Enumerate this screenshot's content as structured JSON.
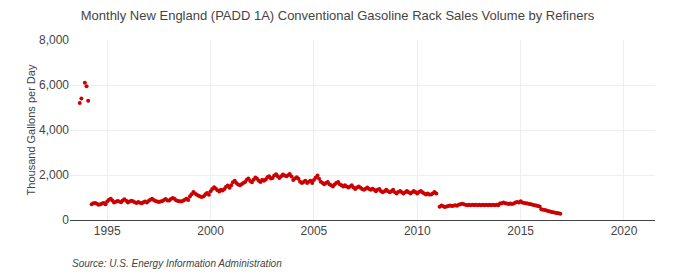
{
  "chart_data": {
    "type": "scatter",
    "title": "Monthly New England (PADD 1A) Conventional Gasoline Rack Sales Volume by Refiners",
    "y_label": "Thousand Gallons per Day",
    "annotations": [
      "Source: U.S. Energy Information Administration"
    ],
    "color": "#cc0000",
    "grid": true,
    "xlim": [
      1993.2,
      2021.5
    ],
    "xticks": [
      1995,
      2000,
      2005,
      2010,
      2015,
      2020
    ],
    "ylim": [
      0,
      8000
    ],
    "yticks": [
      0,
      {
        "value": 2000,
        "label": "2,000"
      },
      {
        "value": 4000,
        "label": "4,000"
      },
      {
        "value": 6000,
        "label": "6,000"
      },
      {
        "value": 8000,
        "label": "8,000"
      }
    ],
    "x": [
      1993.67,
      1993.75,
      1993.92,
      1994.0,
      1994.08,
      1994.25,
      1994.33,
      1994.42,
      1994.5,
      1994.58,
      1994.67,
      1994.75,
      1994.83,
      1994.92,
      1995.0,
      1995.08,
      1995.17,
      1995.25,
      1995.33,
      1995.42,
      1995.5,
      1995.58,
      1995.67,
      1995.75,
      1995.83,
      1995.92,
      1996.0,
      1996.08,
      1996.17,
      1996.25,
      1996.33,
      1996.42,
      1996.5,
      1996.58,
      1996.67,
      1996.75,
      1996.83,
      1996.92,
      1997.0,
      1997.08,
      1997.17,
      1997.25,
      1997.33,
      1997.42,
      1997.5,
      1997.58,
      1997.67,
      1997.75,
      1997.83,
      1997.92,
      1998.0,
      1998.08,
      1998.17,
      1998.25,
      1998.33,
      1998.42,
      1998.5,
      1998.58,
      1998.67,
      1998.75,
      1998.83,
      1998.92,
      1999.0,
      1999.08,
      1999.17,
      1999.25,
      1999.33,
      1999.42,
      1999.5,
      1999.58,
      1999.67,
      1999.75,
      1999.83,
      1999.92,
      2000.0,
      2000.08,
      2000.17,
      2000.25,
      2000.33,
      2000.42,
      2000.5,
      2000.58,
      2000.67,
      2000.75,
      2000.83,
      2000.92,
      2001.0,
      2001.08,
      2001.17,
      2001.25,
      2001.33,
      2001.42,
      2001.5,
      2001.58,
      2001.67,
      2001.75,
      2001.83,
      2001.92,
      2002.0,
      2002.08,
      2002.17,
      2002.25,
      2002.33,
      2002.42,
      2002.5,
      2002.58,
      2002.67,
      2002.75,
      2002.83,
      2002.92,
      2003.0,
      2003.08,
      2003.17,
      2003.25,
      2003.33,
      2003.42,
      2003.5,
      2003.58,
      2003.67,
      2003.75,
      2003.83,
      2003.92,
      2004.0,
      2004.08,
      2004.17,
      2004.25,
      2004.33,
      2004.42,
      2004.5,
      2004.58,
      2004.67,
      2004.75,
      2004.83,
      2004.92,
      2005.0,
      2005.08,
      2005.17,
      2005.25,
      2005.33,
      2005.42,
      2005.5,
      2005.58,
      2005.67,
      2005.75,
      2005.83,
      2005.92,
      2006.0,
      2006.08,
      2006.17,
      2006.25,
      2006.33,
      2006.42,
      2006.5,
      2006.58,
      2006.67,
      2006.75,
      2006.83,
      2006.92,
      2007.0,
      2007.08,
      2007.17,
      2007.25,
      2007.33,
      2007.42,
      2007.5,
      2007.58,
      2007.67,
      2007.75,
      2007.83,
      2007.92,
      2008.0,
      2008.08,
      2008.17,
      2008.25,
      2008.33,
      2008.42,
      2008.5,
      2008.58,
      2008.67,
      2008.75,
      2008.83,
      2008.92,
      2009.0,
      2009.08,
      2009.17,
      2009.25,
      2009.33,
      2009.42,
      2009.5,
      2009.58,
      2009.67,
      2009.75,
      2009.83,
      2009.92,
      2010.0,
      2010.08,
      2010.17,
      2010.25,
      2010.33,
      2010.42,
      2010.5,
      2010.58,
      2010.67,
      2010.75,
      2010.83,
      2010.92,
      2011.08,
      2011.17,
      2011.25,
      2011.33,
      2011.42,
      2011.5,
      2011.58,
      2011.67,
      2011.75,
      2011.83,
      2011.92,
      2012.0,
      2012.08,
      2012.17,
      2012.25,
      2012.33,
      2012.42,
      2012.5,
      2012.58,
      2012.67,
      2012.75,
      2012.83,
      2012.92,
      2013.0,
      2013.08,
      2013.17,
      2013.25,
      2013.33,
      2013.42,
      2013.5,
      2013.58,
      2013.67,
      2013.75,
      2013.83,
      2013.92,
      2014.0,
      2014.08,
      2014.17,
      2014.25,
      2014.33,
      2014.42,
      2014.5,
      2014.58,
      2014.67,
      2014.75,
      2014.83,
      2014.92,
      2015.0,
      2015.08,
      2015.17,
      2015.25,
      2015.33,
      2015.42,
      2015.5,
      2015.58,
      2015.67,
      2015.75,
      2015.83,
      2015.92,
      2016.0,
      2016.08,
      2016.17,
      2016.25,
      2016.33,
      2016.42,
      2016.5,
      2016.58,
      2016.67,
      2016.75,
      2016.83,
      2016.92
    ],
    "values": [
      5200,
      5400,
      6100,
      5950,
      5300,
      700,
      750,
      760,
      720,
      680,
      700,
      730,
      760,
      700,
      820,
      900,
      950,
      870,
      780,
      810,
      840,
      820,
      790,
      870,
      920,
      860,
      780,
      820,
      860,
      830,
      790,
      760,
      800,
      770,
      750,
      790,
      820,
      780,
      850,
      900,
      940,
      890,
      840,
      820,
      800,
      820,
      850,
      890,
      930,
      870,
      870,
      930,
      980,
      940,
      880,
      850,
      830,
      820,
      860,
      900,
      950,
      890,
      1050,
      1150,
      1250,
      1180,
      1120,
      1080,
      1050,
      1020,
      1060,
      1150,
      1200,
      1120,
      1280,
      1380,
      1460,
      1400,
      1320,
      1270,
      1350,
      1310,
      1380,
      1480,
      1530,
      1430,
      1550,
      1680,
      1740,
      1640,
      1580,
      1540,
      1590,
      1640,
      1690,
      1790,
      1840,
      1730,
      1680,
      1790,
      1890,
      1830,
      1740,
      1690,
      1790,
      1740,
      1800,
      1900,
      1950,
      1840,
      1870,
      1980,
      2030,
      1940,
      1870,
      1950,
      2020,
      1980,
      1940,
      1990,
      2040,
      1930,
      1780,
      1840,
      1900,
      1830,
      1700,
      1640,
      1690,
      1740,
      1640,
      1700,
      1740,
      1640,
      1780,
      1880,
      1980,
      1830,
      1700,
      1640,
      1590,
      1640,
      1690,
      1590,
      1540,
      1490,
      1580,
      1640,
      1690,
      1590,
      1540,
      1490,
      1540,
      1490,
      1440,
      1490,
      1540,
      1440,
      1380,
      1440,
      1490,
      1430,
      1380,
      1340,
      1390,
      1440,
      1380,
      1340,
      1390,
      1340,
      1280,
      1340,
      1380,
      1280,
      1230,
      1280,
      1340,
      1280,
      1230,
      1280,
      1340,
      1230,
      1180,
      1240,
      1290,
      1230,
      1180,
      1230,
      1290,
      1230,
      1180,
      1230,
      1290,
      1230,
      1180,
      1240,
      1290,
      1230,
      1180,
      1130,
      1180,
      1130,
      1130,
      1180,
      1240,
      1180,
      590,
      640,
      610,
      580,
      600,
      620,
      640,
      620,
      630,
      660,
      630,
      680,
      700,
      720,
      700,
      680,
      660,
      680,
      660,
      680,
      660,
      680,
      660,
      680,
      660,
      680,
      660,
      680,
      660,
      680,
      660,
      680,
      660,
      680,
      660,
      730,
      750,
      780,
      750,
      730,
      710,
      730,
      710,
      730,
      780,
      800,
      780,
      830,
      780,
      760,
      740,
      730,
      710,
      700,
      680,
      660,
      640,
      620,
      600,
      480,
      460,
      440,
      420,
      400,
      380,
      360,
      340,
      320,
      310,
      295,
      280
    ]
  }
}
